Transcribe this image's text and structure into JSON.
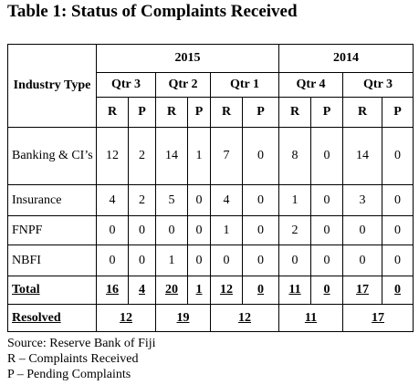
{
  "title": "Table 1: Status of Complaints Received",
  "table": {
    "header": {
      "corner": "Industry Type",
      "years": [
        "2015",
        "2014"
      ],
      "quarters": [
        "Qtr 3",
        "Qtr 2",
        "Qtr 1",
        "Qtr 4",
        "Qtr 3"
      ],
      "sub_labels": [
        "R",
        "P"
      ]
    },
    "rows": [
      {
        "label": "Banking & CI’s",
        "values": [
          12,
          2,
          14,
          1,
          7,
          0,
          8,
          0,
          14,
          0
        ]
      },
      {
        "label": "Insurance",
        "values": [
          4,
          2,
          5,
          0,
          4,
          0,
          1,
          0,
          3,
          0
        ]
      },
      {
        "label": "FNPF",
        "values": [
          0,
          0,
          0,
          0,
          1,
          0,
          2,
          0,
          0,
          0
        ]
      },
      {
        "label": "NBFI",
        "values": [
          0,
          0,
          1,
          0,
          0,
          0,
          0,
          0,
          0,
          0
        ]
      }
    ],
    "total": {
      "label": "Total",
      "values": [
        16,
        4,
        20,
        1,
        12,
        0,
        11,
        0,
        17,
        0
      ]
    },
    "resolved": {
      "label": "Resolved",
      "values": [
        12,
        19,
        12,
        11,
        17
      ]
    }
  },
  "notes": [
    "Source: Reserve Bank of Fiji",
    "R – Complaints Received",
    "P – Pending Complaints"
  ]
}
